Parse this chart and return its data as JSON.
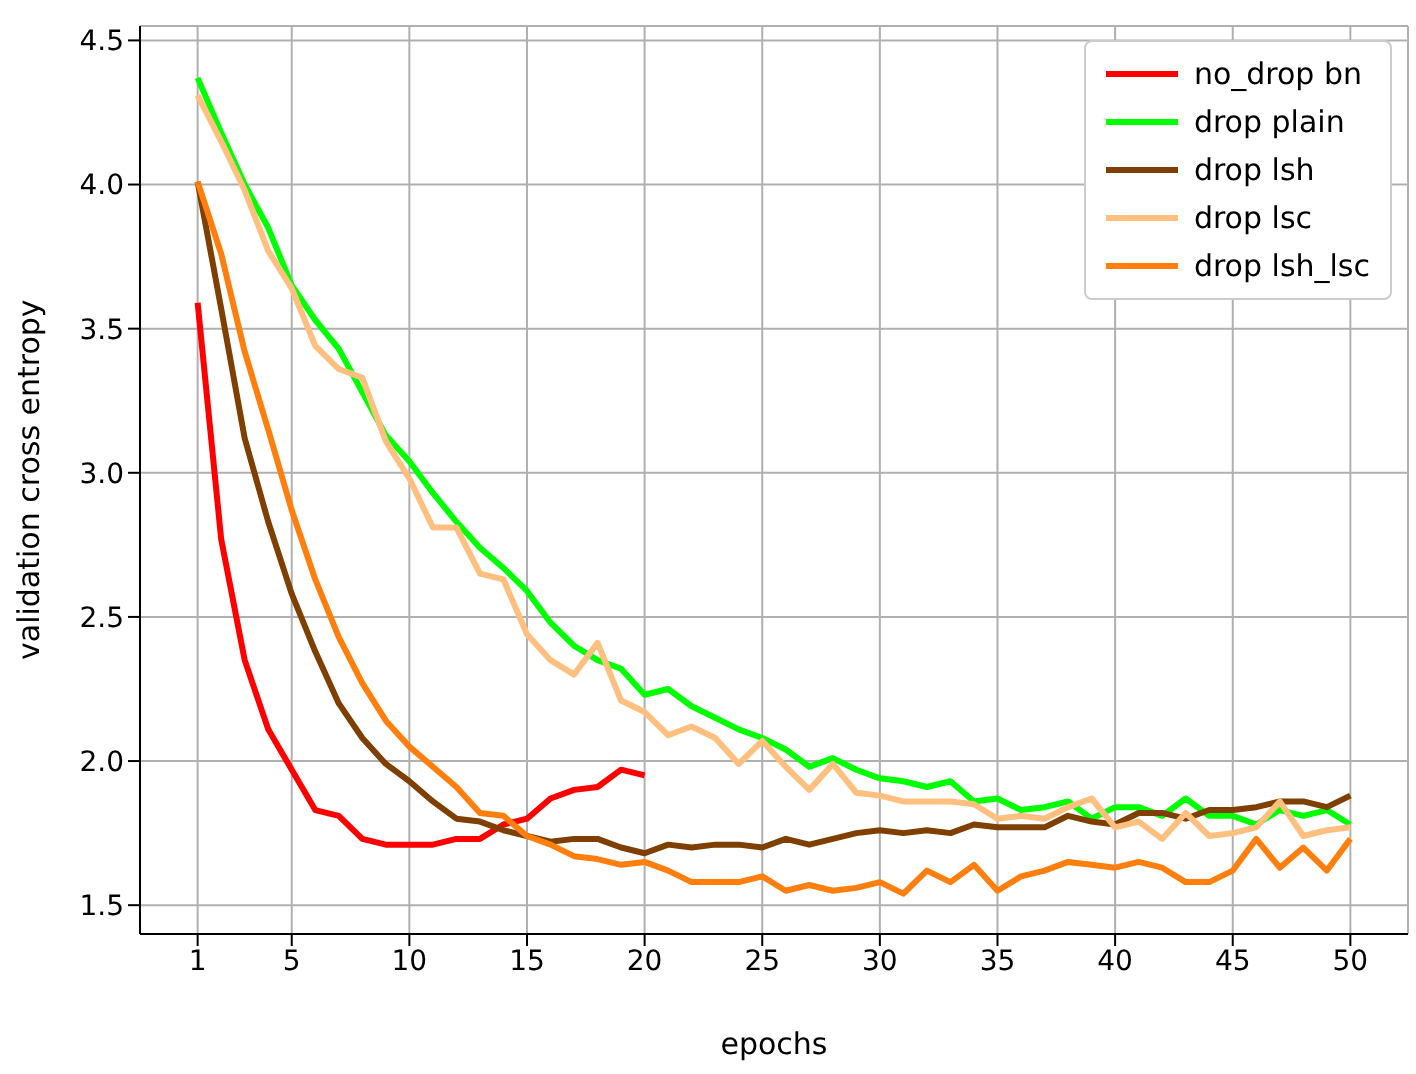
{
  "chart_data": {
    "type": "line",
    "xlabel": "epochs",
    "ylabel": "validation cross entropy",
    "x": [
      1,
      2,
      3,
      4,
      5,
      6,
      7,
      8,
      9,
      10,
      11,
      12,
      13,
      14,
      15,
      16,
      17,
      18,
      19,
      20,
      21,
      22,
      23,
      24,
      25,
      26,
      27,
      28,
      29,
      30,
      31,
      32,
      33,
      34,
      35,
      36,
      37,
      38,
      39,
      40,
      41,
      42,
      43,
      44,
      45,
      46,
      47,
      48,
      49,
      50
    ],
    "xlim": [
      -1.45,
      52.45
    ],
    "xticks": [
      1,
      5,
      10,
      15,
      20,
      25,
      30,
      35,
      40,
      45,
      50
    ],
    "ylim": [
      1.4,
      4.55
    ],
    "yticks": [
      1.5,
      {
        "value": 2,
        "label": "2.0"
      },
      2.5,
      {
        "value": 3,
        "label": "3.0"
      },
      3.5,
      {
        "value": 4,
        "label": "4.0"
      },
      4.5
    ],
    "grid": true,
    "legend": "top right",
    "marker": "none",
    "line_style": "solid",
    "series": [
      {
        "name": "no_drop bn",
        "color": "#ff0000",
        "values": [
          3.59,
          2.77,
          2.35,
          2.11,
          1.97,
          1.83,
          1.81,
          1.73,
          1.71,
          1.71,
          1.71,
          1.73,
          1.73,
          1.78,
          1.8,
          1.87,
          1.9,
          1.91,
          1.97,
          1.95,
          null,
          null,
          null,
          null,
          null,
          null,
          null,
          null,
          null,
          null,
          null,
          null,
          null,
          null,
          null,
          null,
          null,
          null,
          null,
          null,
          null,
          null,
          null,
          null,
          null,
          null,
          null,
          null,
          null,
          null
        ]
      },
      {
        "name": "drop plain",
        "color": "#00ff00",
        "values": [
          4.37,
          4.18,
          4.0,
          3.85,
          3.65,
          3.53,
          3.43,
          3.28,
          3.13,
          3.04,
          2.93,
          2.83,
          2.74,
          2.67,
          2.59,
          2.48,
          2.4,
          2.35,
          2.32,
          2.23,
          2.25,
          2.19,
          2.15,
          2.11,
          2.08,
          2.04,
          1.98,
          2.01,
          1.97,
          1.94,
          1.93,
          1.91,
          1.93,
          1.86,
          1.87,
          1.83,
          1.84,
          1.86,
          1.8,
          1.84,
          1.84,
          1.81,
          1.87,
          1.81,
          1.81,
          1.78,
          1.83,
          1.81,
          1.83,
          1.78
        ]
      },
      {
        "name": "drop lsh",
        "color": "#7f3f00",
        "values": [
          4.01,
          3.57,
          3.12,
          2.83,
          2.58,
          2.38,
          2.2,
          2.08,
          1.99,
          1.93,
          1.86,
          1.8,
          1.79,
          1.76,
          1.74,
          1.72,
          1.73,
          1.73,
          1.7,
          1.68,
          1.71,
          1.7,
          1.71,
          1.71,
          1.7,
          1.73,
          1.71,
          1.73,
          1.75,
          1.76,
          1.75,
          1.76,
          1.75,
          1.78,
          1.77,
          1.77,
          1.77,
          1.81,
          1.79,
          1.78,
          1.82,
          1.82,
          1.8,
          1.83,
          1.83,
          1.84,
          1.86,
          1.86,
          1.84,
          1.88
        ]
      },
      {
        "name": "drop lsc",
        "color": "#ffbf7f",
        "values": [
          4.31,
          4.15,
          3.98,
          3.77,
          3.64,
          3.44,
          3.36,
          3.33,
          3.11,
          2.98,
          2.81,
          2.81,
          2.65,
          2.63,
          2.44,
          2.35,
          2.3,
          2.41,
          2.21,
          2.17,
          2.09,
          2.12,
          2.08,
          1.99,
          2.07,
          1.98,
          1.9,
          1.99,
          1.89,
          1.88,
          1.86,
          1.86,
          1.86,
          1.85,
          1.8,
          1.81,
          1.8,
          1.84,
          1.87,
          1.77,
          1.79,
          1.73,
          1.82,
          1.74,
          1.75,
          1.77,
          1.86,
          1.74,
          1.76,
          1.77
        ]
      },
      {
        "name": "drop lsh_lsc",
        "color": "#ff7f0e",
        "values": [
          4.01,
          3.76,
          3.42,
          3.15,
          2.87,
          2.63,
          2.43,
          2.27,
          2.14,
          2.05,
          1.98,
          1.91,
          1.82,
          1.81,
          1.74,
          1.71,
          1.67,
          1.66,
          1.64,
          1.65,
          1.62,
          1.58,
          1.58,
          1.58,
          1.6,
          1.55,
          1.57,
          1.55,
          1.56,
          1.58,
          1.54,
          1.62,
          1.58,
          1.64,
          1.55,
          1.6,
          1.62,
          1.65,
          1.64,
          1.63,
          1.65,
          1.63,
          1.58,
          1.58,
          1.62,
          1.73,
          1.63,
          1.7,
          1.62,
          1.73
        ]
      }
    ]
  }
}
